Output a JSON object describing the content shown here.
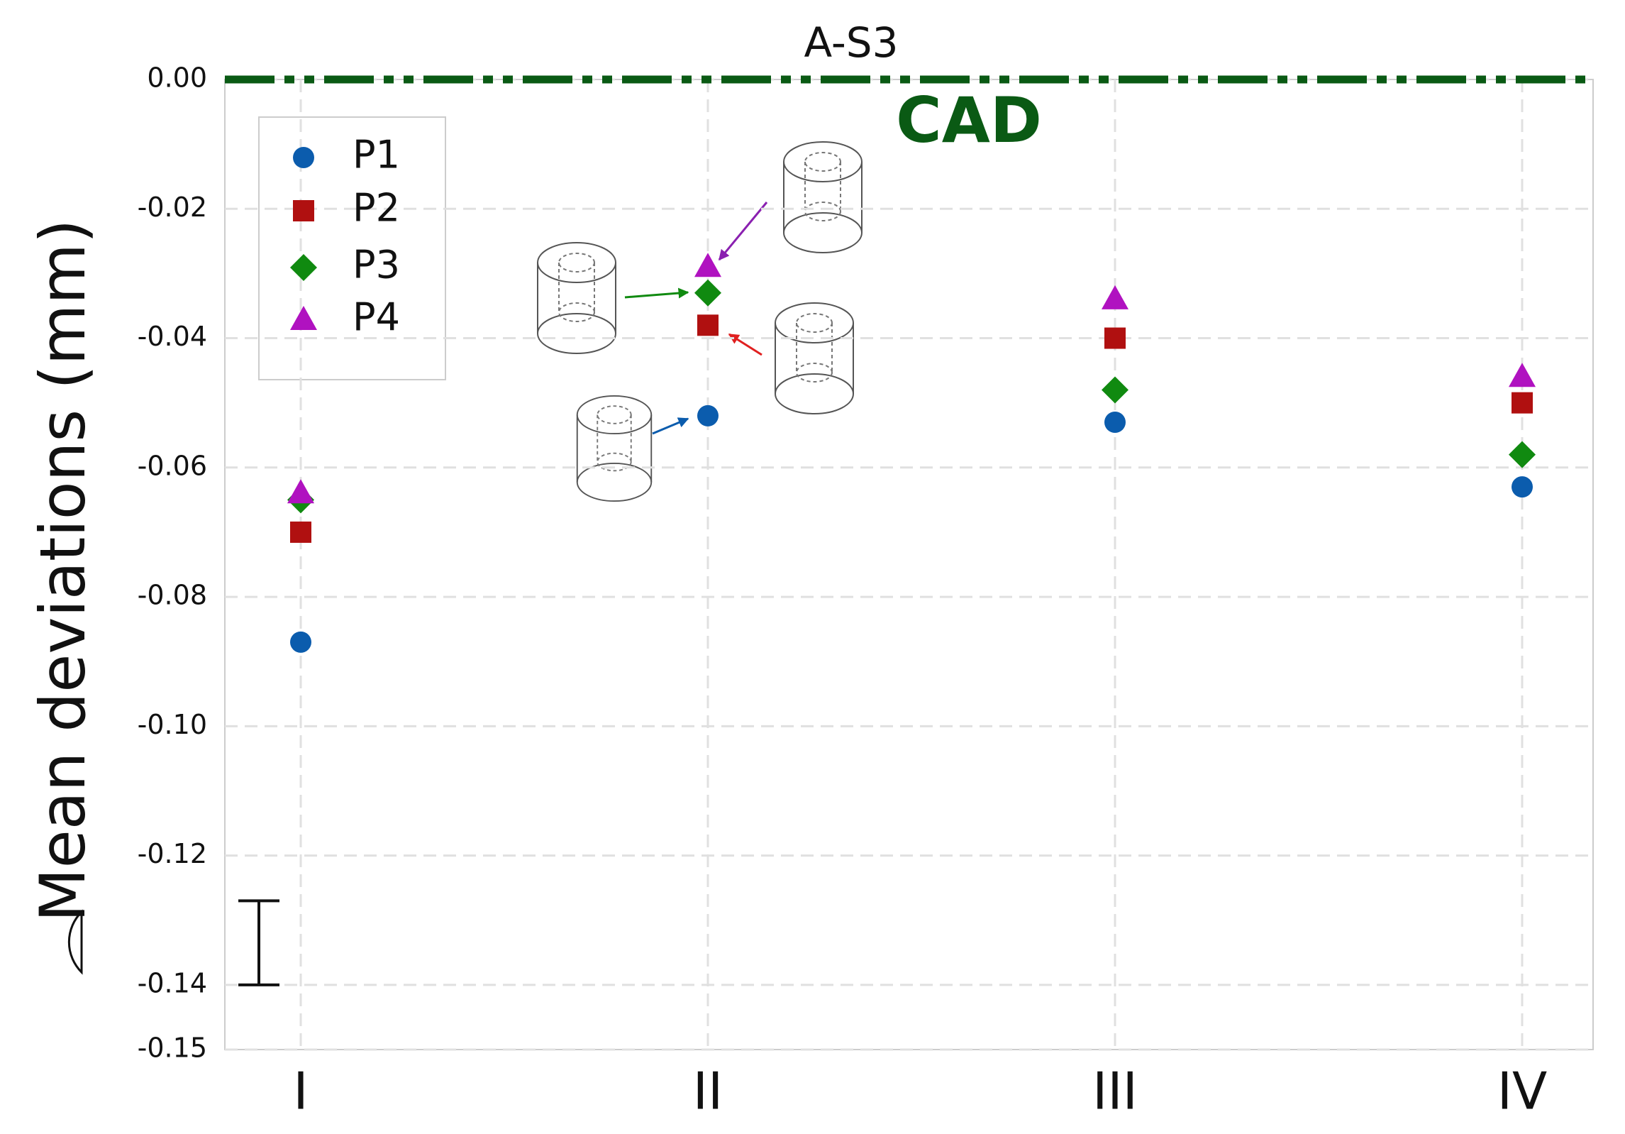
{
  "chart_data": {
    "type": "scatter",
    "title": "A-S3",
    "y_label": "Mean deviations (mm)",
    "categories": [
      "I",
      "II",
      "III",
      "IV"
    ],
    "series": [
      {
        "name": "P1",
        "color": "#0b5cad",
        "marker": "circle",
        "values": [
          -0.087,
          -0.052,
          -0.053,
          -0.063
        ]
      },
      {
        "name": "P2",
        "color": "#b01010",
        "marker": "square",
        "values": [
          -0.07,
          -0.038,
          -0.04,
          -0.05
        ]
      },
      {
        "name": "P3",
        "color": "#108a10",
        "marker": "diamond",
        "values": [
          -0.065,
          -0.033,
          -0.048,
          -0.058
        ]
      },
      {
        "name": "P4",
        "color": "#b012c0",
        "marker": "triangle",
        "values": [
          -0.064,
          -0.029,
          -0.034,
          -0.046
        ]
      }
    ],
    "reference_line": {
      "value": 0,
      "label": "CAD",
      "color": "#0a5a14"
    },
    "scale_bar": [
      -0.127,
      -0.14
    ],
    "ylim": [
      -0.15,
      0
    ],
    "yticks": [
      {
        "value": 0,
        "label": "0.00"
      },
      {
        "value": -0.02,
        "label": "-0.02"
      },
      {
        "value": -0.04,
        "label": "-0.04"
      },
      {
        "value": -0.06,
        "label": "-0.06"
      },
      {
        "value": -0.08,
        "label": "-0.08"
      },
      {
        "value": -0.1,
        "label": "-0.10"
      },
      {
        "value": -0.12,
        "label": "-0.12"
      },
      {
        "value": -0.14,
        "label": "-0.14"
      },
      {
        "value": -0.15,
        "label": "-0.15"
      }
    ],
    "grid": true,
    "legend": "upper left"
  }
}
